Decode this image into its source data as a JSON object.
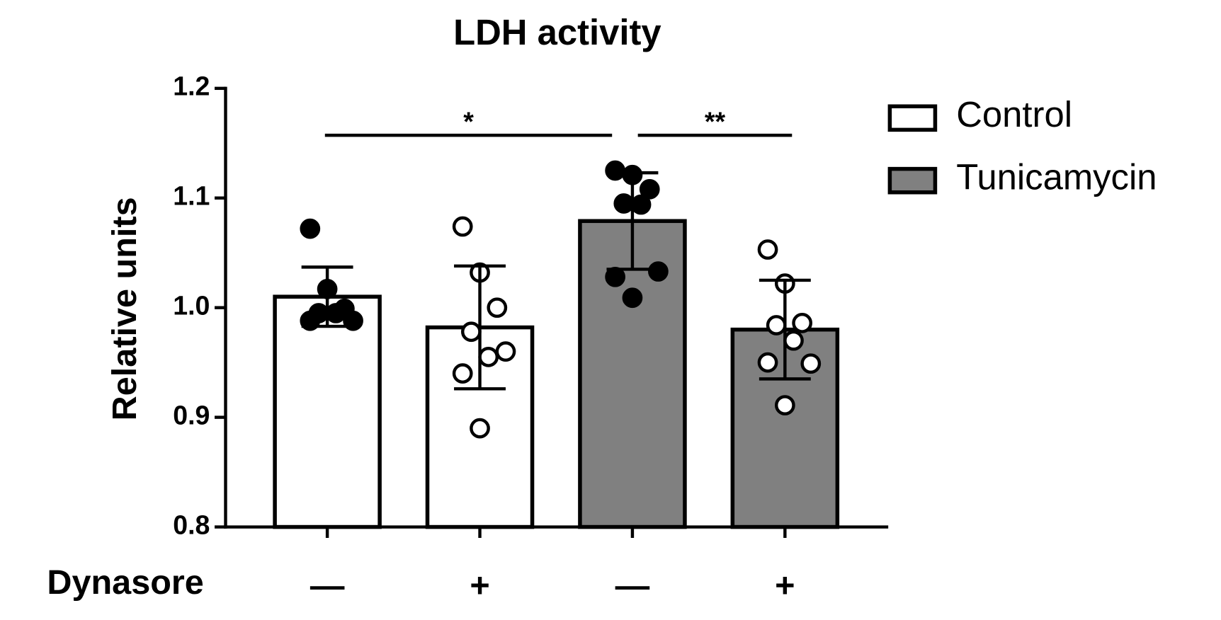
{
  "chart_data": {
    "type": "bar",
    "title": "LDH activity",
    "y_label": "Relative units",
    "x_label": "Dynasore",
    "categories": [
      "—",
      "+",
      "—",
      "+"
    ],
    "series": [
      {
        "name": "Control",
        "color": "#ffffff",
        "values": [
          1.01,
          0.982,
          null,
          null
        ],
        "errors": [
          0.027,
          0.056,
          null,
          null
        ]
      },
      {
        "name": "Tunicamycin",
        "color": "#808080",
        "values": [
          null,
          null,
          1.079,
          0.98
        ],
        "errors": [
          null,
          null,
          0.044,
          0.045
        ]
      }
    ],
    "points": [
      [
        1.072,
        1.017,
        0.999,
        0.995,
        0.995,
        0.988,
        0.988
      ],
      [
        1.074,
        1.032,
        1.0,
        0.978,
        0.955,
        0.96,
        0.94,
        0.89
      ],
      [
        1.125,
        1.121,
        1.108,
        1.095,
        1.094,
        1.033,
        1.028,
        1.009
      ],
      [
        1.053,
        1.022,
        0.986,
        0.984,
        0.97,
        0.949,
        0.95,
        0.911
      ]
    ],
    "point_colors": [
      "#000000",
      "#ffffff",
      "#000000",
      "#ffffff"
    ],
    "significance": [
      "*",
      "**"
    ],
    "ylim": [
      0.8,
      1.2
    ],
    "yticks": [
      {
        "value": 0.8,
        "label": "0.8"
      },
      {
        "value": 0.9,
        "label": "0.9"
      },
      {
        "value": 1.0,
        "label": "1.0"
      },
      {
        "value": 1.1,
        "label": "1.1"
      },
      {
        "value": 1.2,
        "label": "1.2"
      }
    ],
    "grid": false,
    "legend": "top-right"
  }
}
